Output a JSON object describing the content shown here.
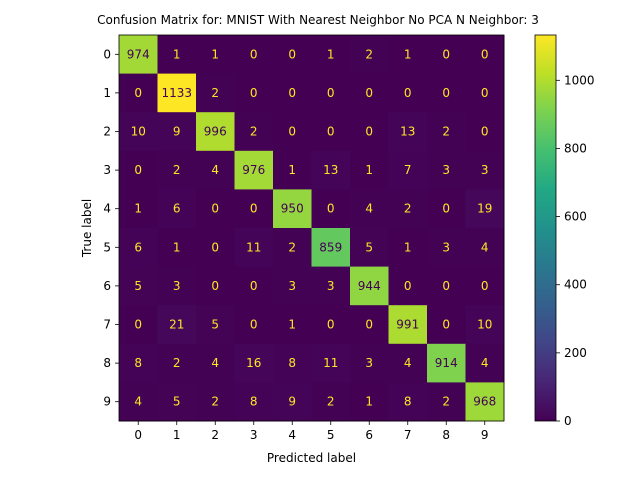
{
  "chart_data": {
    "type": "heatmap",
    "title": "Confusion Matrix for: MNIST With Nearest Neighbor No PCA N Neighbor: 3",
    "xlabel": "Predicted label",
    "ylabel": "True label",
    "x_categories": [
      "0",
      "1",
      "2",
      "3",
      "4",
      "5",
      "6",
      "7",
      "8",
      "9"
    ],
    "y_categories": [
      "0",
      "1",
      "2",
      "3",
      "4",
      "5",
      "6",
      "7",
      "8",
      "9"
    ],
    "matrix": [
      [
        974,
        1,
        1,
        0,
        0,
        1,
        2,
        1,
        0,
        0
      ],
      [
        0,
        1133,
        2,
        0,
        0,
        0,
        0,
        0,
        0,
        0
      ],
      [
        10,
        9,
        996,
        2,
        0,
        0,
        0,
        13,
        2,
        0
      ],
      [
        0,
        2,
        4,
        976,
        1,
        13,
        1,
        7,
        3,
        3
      ],
      [
        1,
        6,
        0,
        0,
        950,
        0,
        4,
        2,
        0,
        19
      ],
      [
        6,
        1,
        0,
        11,
        2,
        859,
        5,
        1,
        3,
        4
      ],
      [
        5,
        3,
        0,
        0,
        3,
        3,
        944,
        0,
        0,
        0
      ],
      [
        0,
        21,
        5,
        0,
        1,
        0,
        0,
        991,
        0,
        10
      ],
      [
        8,
        2,
        4,
        16,
        8,
        11,
        3,
        4,
        914,
        4
      ],
      [
        4,
        5,
        2,
        8,
        9,
        2,
        1,
        8,
        2,
        968
      ]
    ],
    "colorbar": {
      "min": 0,
      "max": 1133,
      "ticks": [
        0,
        200,
        400,
        600,
        800,
        1000
      ],
      "colormap": "viridis"
    },
    "text_colors": {
      "dark_cell": "#fde725",
      "light_cell": "#440154"
    },
    "grid": false
  }
}
